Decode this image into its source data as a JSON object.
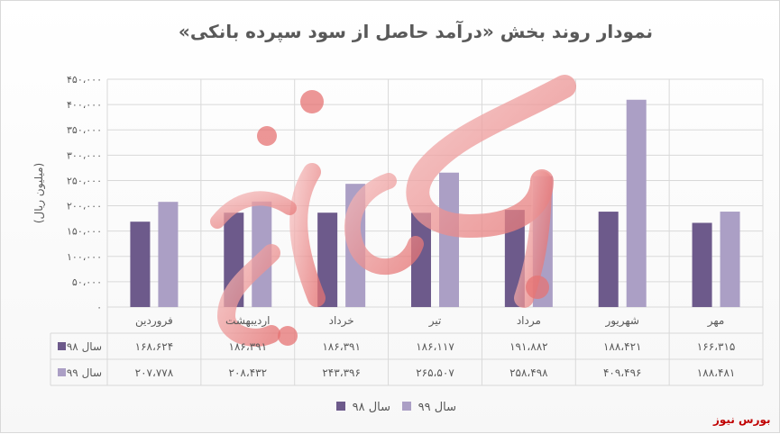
{
  "chart_data": {
    "type": "bar",
    "title": "نمودار روند بخش «درآمد حاصل از سود سپرده بانکی»",
    "ylabel": "(میلیون ریال)",
    "xlabel": "",
    "ylim": [
      0,
      450000
    ],
    "yticks": [
      0,
      50000,
      100000,
      150000,
      200000,
      250000,
      300000,
      350000,
      400000,
      450000
    ],
    "ytick_labels": [
      "۰",
      "۵۰،۰۰۰",
      "۱۰۰،۰۰۰",
      "۱۵۰،۰۰۰",
      "۲۰۰،۰۰۰",
      "۲۵۰،۰۰۰",
      "۳۰۰،۰۰۰",
      "۳۵۰،۰۰۰",
      "۴۰۰،۰۰۰",
      "۴۵۰،۰۰۰"
    ],
    "categories": [
      "فروردین",
      "اردیبهشت",
      "خرداد",
      "تیر",
      "مرداد",
      "شهریور",
      "مهر"
    ],
    "series": [
      {
        "name": "سال ۹۸",
        "color": "#6d5a8b",
        "values": [
          168624,
          186391,
          186391,
          186117,
          191882,
          188421,
          166315
        ],
        "value_labels": [
          "۱۶۸،۶۲۴",
          "۱۸۶،۳۹۱",
          "۱۸۶،۳۹۱",
          "۱۸۶،۱۱۷",
          "۱۹۱،۸۸۲",
          "۱۸۸،۴۲۱",
          "۱۶۶،۳۱۵"
        ]
      },
      {
        "name": "سال ۹۹",
        "color": "#ab9fc5",
        "values": [
          207778,
          208432,
          243396,
          265507,
          258498,
          409496,
          188481
        ],
        "value_labels": [
          "۲۰۷،۷۷۸",
          "۲۰۸،۴۳۲",
          "۲۴۳،۳۹۶",
          "۲۶۵،۵۰۷",
          "۲۵۸،۴۹۸",
          "۴۰۹،۴۹۶",
          "۱۸۸،۴۸۱"
        ]
      }
    ],
    "grid": true,
    "legend": "bottom-center",
    "data_table": true
  },
  "watermark": {
    "text": "بورس نیوز",
    "color": "#c00000"
  },
  "colors": {
    "axis_text": "#595959",
    "grid": "#d9d9d9"
  }
}
